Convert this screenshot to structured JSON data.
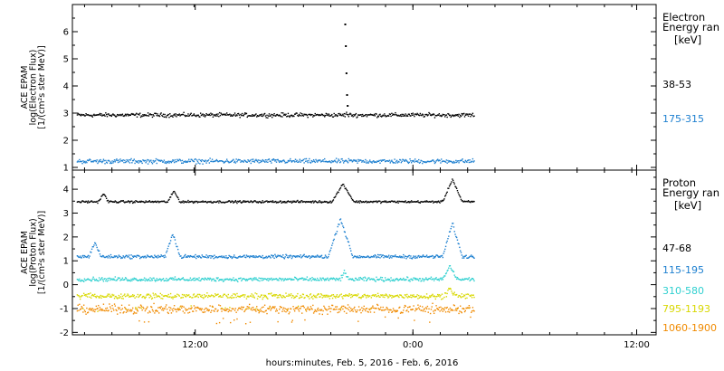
{
  "xlabel": "hours:minutes, Feb.  5, 2016 - Feb.  6, 2016",
  "x_ticks": [
    "12:00",
    "0:00",
    "12:00"
  ],
  "chart_data": [
    {
      "type": "scatter",
      "ylabel_lines": [
        "ACE EPAM",
        "log(Electron Flux)",
        "[1/(cm²s ster MeV)]"
      ],
      "ylim": [
        0.9,
        7.0
      ],
      "y_ticks": [
        1,
        2,
        3,
        4,
        5,
        6
      ],
      "legend_title_lines": [
        "Electron",
        "Energy ran"
      ],
      "legend_unit": "[keV]",
      "series": [
        {
          "name": "38-53",
          "color": "#000000",
          "base": 2.95,
          "noise": 0.08,
          "events": [
            [
              22.5,
              0.15,
              0.05
            ]
          ],
          "spike": [
            [
              22.4,
              6.3
            ],
            [
              22.45,
              5.5
            ],
            [
              22.5,
              4.5
            ],
            [
              22.55,
              3.7
            ],
            [
              22.6,
              3.3
            ]
          ]
        },
        {
          "name": "175-315",
          "color": "#1e80d0",
          "base": 1.25,
          "noise": 0.09,
          "events": [],
          "spike": []
        }
      ]
    },
    {
      "type": "scatter",
      "ylabel_lines": [
        "ACE EPAM",
        "log(Proton Flux)",
        "[1/(cm²s ster MeV)]"
      ],
      "ylim": [
        -2.1,
        4.8
      ],
      "y_ticks": [
        -2,
        -1,
        0,
        1,
        2,
        3,
        4
      ],
      "legend_title_lines": [
        "Proton",
        "Energy ran"
      ],
      "legend_unit": "[keV]",
      "series": [
        {
          "name": "47-68",
          "color": "#000000",
          "base": 3.5,
          "noise": 0.05,
          "events": [
            [
              2.5,
              0.35,
              0.4
            ],
            [
              8.3,
              0.45,
              0.5
            ],
            [
              22.2,
              0.75,
              0.9
            ],
            [
              31.2,
              0.95,
              0.8
            ]
          ],
          "spike": []
        },
        {
          "name": "115-195",
          "color": "#1e80d0",
          "base": 1.2,
          "noise": 0.08,
          "events": [
            [
              1.8,
              0.6,
              0.5
            ],
            [
              8.2,
              1.0,
              0.6
            ],
            [
              22.0,
              1.6,
              1.0
            ],
            [
              31.2,
              1.4,
              0.8
            ]
          ],
          "spike": []
        },
        {
          "name": "310-580",
          "color": "#30d0d0",
          "base": 0.25,
          "noise": 0.09,
          "events": [
            [
              22.3,
              0.35,
              0.3
            ],
            [
              31.0,
              0.55,
              0.6
            ]
          ],
          "spike": []
        },
        {
          "name": "795-1193",
          "color": "#d8d800",
          "base": -0.45,
          "noise": 0.12,
          "events": [
            [
              31.0,
              0.3,
              0.5
            ]
          ],
          "spike": []
        },
        {
          "name": "1060-1900",
          "color": "#f08a00",
          "base": -1.0,
          "noise": 0.2,
          "events": [],
          "spike": []
        }
      ]
    }
  ]
}
